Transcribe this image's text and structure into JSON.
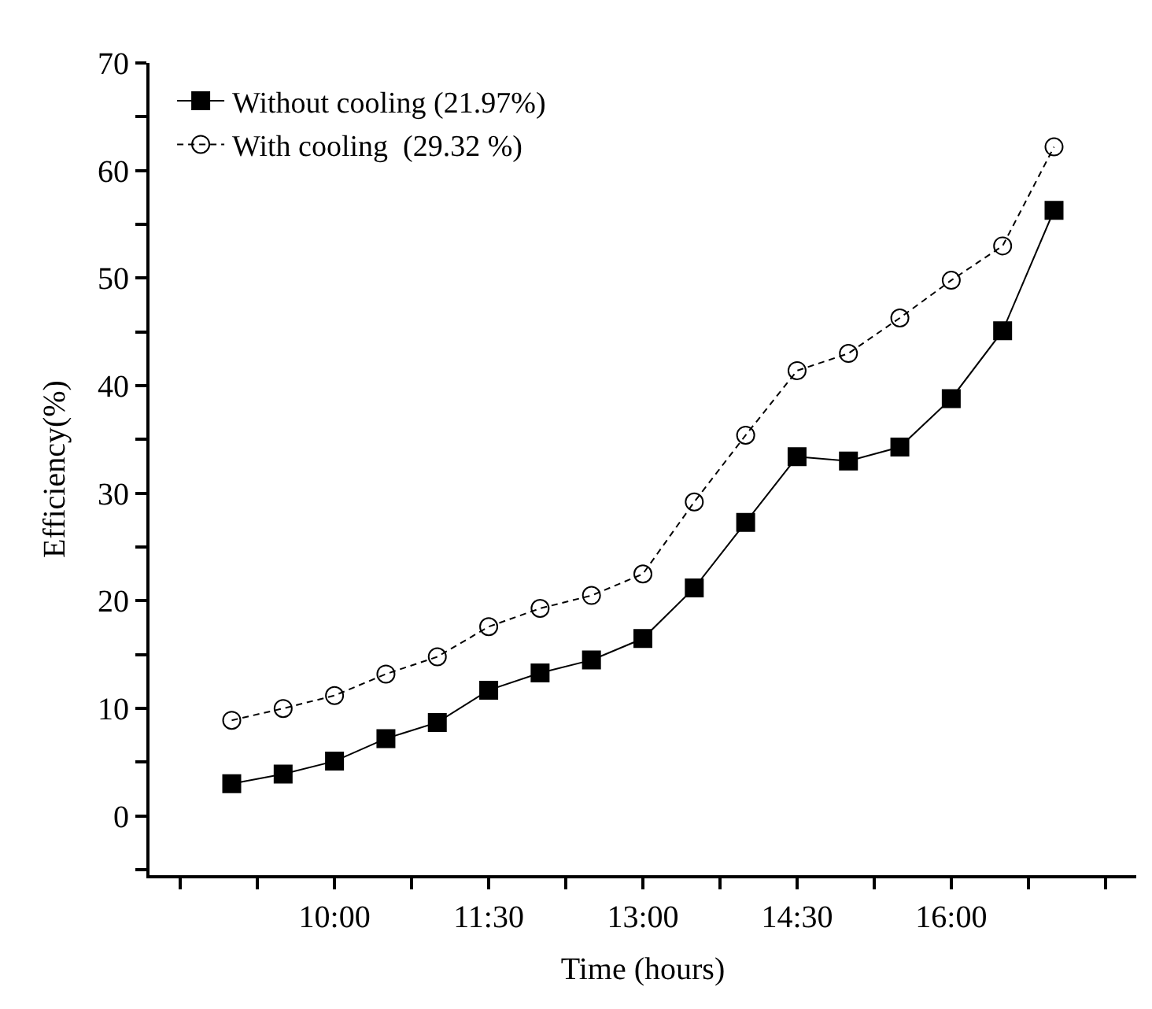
{
  "chart_data": {
    "type": "line",
    "xlabel": "Time (hours)",
    "ylabel": "Efficiency(%)",
    "x": [
      9,
      9.5,
      10,
      10.5,
      11,
      11.5,
      12,
      12.5,
      13,
      13.5,
      14,
      14.5,
      15,
      15.5,
      16,
      16.5,
      17
    ],
    "series": [
      {
        "name": "Without cooling (21.97%)",
        "color": "#000000",
        "marker": "square",
        "line_style": "solid",
        "values": [
          3.0,
          3.9,
          5.1,
          7.2,
          8.7,
          11.7,
          13.3,
          14.5,
          16.5,
          21.2,
          27.3,
          33.4,
          33.0,
          34.3,
          38.8,
          45.1,
          56.3
        ]
      },
      {
        "name": "With cooling  (29.32 %)",
        "color": "#000000",
        "marker": "circle",
        "line_style": "dashed",
        "values": [
          8.9,
          10.0,
          11.2,
          13.2,
          14.8,
          17.6,
          19.3,
          20.5,
          22.5,
          29.2,
          35.4,
          41.4,
          43.0,
          46.3,
          49.8,
          53.0,
          62.2
        ]
      }
    ],
    "xlim": [
      8.2,
      17.8
    ],
    "xticks": [
      {
        "value": 8.5,
        "label": null
      },
      {
        "value": 9.25,
        "label": null
      },
      {
        "value": 10,
        "label": "10:00"
      },
      {
        "value": 10.75,
        "label": null
      },
      {
        "value": 11.5,
        "label": "11:30"
      },
      {
        "value": 12.25,
        "label": null
      },
      {
        "value": 13,
        "label": "13:00"
      },
      {
        "value": 13.75,
        "label": null
      },
      {
        "value": 14.5,
        "label": "14:30"
      },
      {
        "value": 15.25,
        "label": null
      },
      {
        "value": 16,
        "label": "16:00"
      },
      {
        "value": 16.75,
        "label": null
      },
      {
        "value": 17.5,
        "label": null
      }
    ],
    "ylim": [
      -5.5,
      70
    ],
    "yticks": [
      {
        "value": -5,
        "label": null
      },
      0,
      {
        "value": 5,
        "label": null
      },
      10,
      {
        "value": 15,
        "label": null
      },
      20,
      {
        "value": 25,
        "label": null
      },
      30,
      {
        "value": 35,
        "label": null
      },
      40,
      {
        "value": 45,
        "label": null
      },
      50,
      {
        "value": 55,
        "label": null
      },
      60,
      {
        "value": 65,
        "label": null
      },
      70
    ],
    "legend": "top left"
  }
}
